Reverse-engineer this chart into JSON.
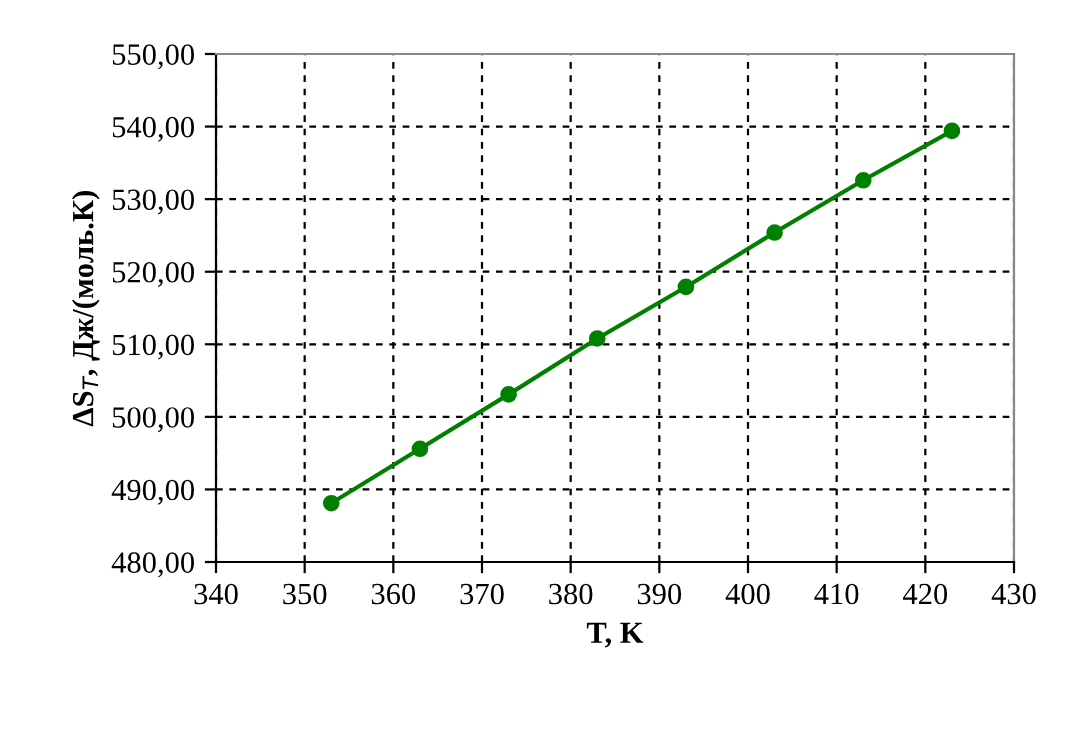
{
  "chart_data": {
    "type": "line",
    "xlabel": "T, K",
    "ylabel": "ΔS$_{T}$, Дж/(моль.К)",
    "xlim": [
      340,
      430
    ],
    "xticks": [
      340,
      350,
      360,
      370,
      380,
      390,
      400,
      410,
      420,
      430
    ],
    "ylim": [
      480,
      550
    ],
    "yticks": [
      {
        "value": 480,
        "label": "480,00"
      },
      {
        "value": 490,
        "label": "490,00"
      },
      {
        "value": 500,
        "label": "500,00"
      },
      {
        "value": 510,
        "label": "510,00"
      },
      {
        "value": 520,
        "label": "520,00"
      },
      {
        "value": 530,
        "label": "530,00"
      },
      {
        "value": 540,
        "label": "540,00"
      },
      {
        "value": 550,
        "label": "550,00"
      }
    ],
    "grid": true,
    "marker": "circle",
    "line_style": "solid",
    "series": [
      {
        "color": "#008000",
        "x": [
          353,
          363,
          373,
          383,
          393,
          403,
          413,
          423
        ],
        "values": [
          488.1,
          495.6,
          503.1,
          510.8,
          517.9,
          525.4,
          532.6,
          539.4
        ]
      }
    ]
  }
}
